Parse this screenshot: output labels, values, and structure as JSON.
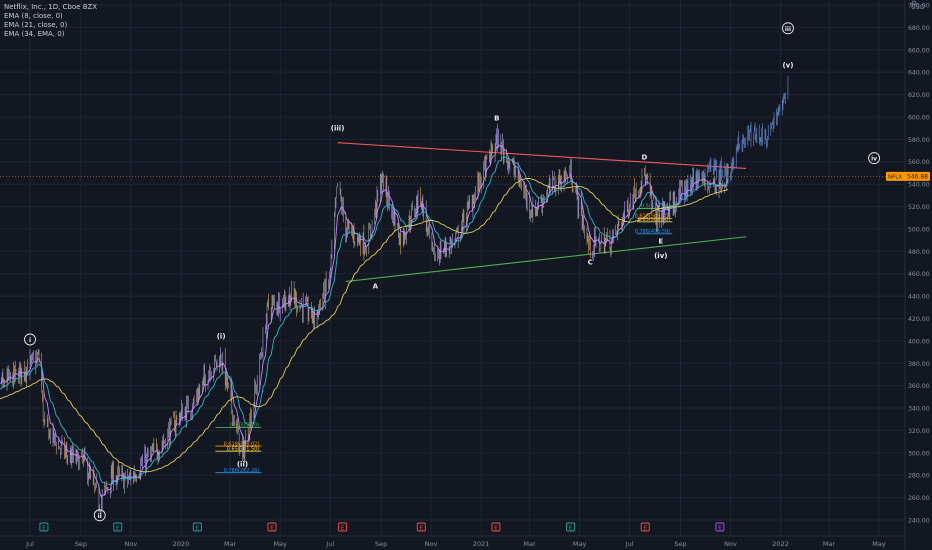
{
  "legend": {
    "title": "Netflix, Inc., 1D, Cboe BZX",
    "ema1": "EMA (8, close, 0)",
    "ema2": "EMA (21, close, 0)",
    "ema3": "EMA (34, EMA, 0)"
  },
  "currency": "USD",
  "last_price": {
    "ticker": "NFLX",
    "value": "546.88"
  },
  "colors": {
    "background": "#131722",
    "candles": "#a5a7ad",
    "projection": "#5d7fc2",
    "ema8": "#c08cff",
    "ema21": "#2fb6c8",
    "ema34": "#e3cd57",
    "resistance": "#f05a5a",
    "support": "#4caf50",
    "price_tag": "#ff9800"
  },
  "chart_data": {
    "type": "candlestick",
    "ylim": [
      230,
      705
    ],
    "y_ticks": [
      240,
      260,
      280,
      300,
      320,
      340,
      360,
      380,
      400,
      420,
      440,
      460,
      480,
      500,
      520,
      540,
      560,
      580,
      600,
      620,
      640,
      660,
      680,
      700
    ],
    "x_ticks": [
      {
        "label": "Jul",
        "date": "2019-07-01"
      },
      {
        "label": "Sep",
        "date": "2019-09-01"
      },
      {
        "label": "Nov",
        "date": "2019-11-01"
      },
      {
        "label": "2020",
        "date": "2020-01-01"
      },
      {
        "label": "Mar",
        "date": "2020-03-01"
      },
      {
        "label": "May",
        "date": "2020-05-01"
      },
      {
        "label": "Jul",
        "date": "2020-07-01"
      },
      {
        "label": "Sep",
        "date": "2020-09-01"
      },
      {
        "label": "Nov",
        "date": "2020-11-01"
      },
      {
        "label": "2021",
        "date": "2021-01-01"
      },
      {
        "label": "Mar",
        "date": "2021-03-01"
      },
      {
        "label": "May",
        "date": "2021-05-01"
      },
      {
        "label": "Jul",
        "date": "2021-07-01"
      },
      {
        "label": "Sep",
        "date": "2021-09-01"
      },
      {
        "label": "Nov",
        "date": "2021-11-01"
      },
      {
        "label": "2022",
        "date": "2022-01-01"
      },
      {
        "label": "Mar",
        "date": "2022-03-01"
      },
      {
        "label": "May",
        "date": "2022-05-01"
      }
    ],
    "price_path": [
      [
        "2019-05-10",
        355
      ],
      [
        "2019-06-05",
        365
      ],
      [
        "2019-06-25",
        375
      ],
      [
        "2019-07-12",
        385
      ],
      [
        "2019-07-18",
        325
      ],
      [
        "2019-08-06",
        305
      ],
      [
        "2019-08-20",
        295
      ],
      [
        "2019-09-05",
        292
      ],
      [
        "2019-09-24",
        255
      ],
      [
        "2019-10-10",
        280
      ],
      [
        "2019-10-28",
        275
      ],
      [
        "2019-11-15",
        290
      ],
      [
        "2019-12-06",
        305
      ],
      [
        "2019-12-27",
        330
      ],
      [
        "2020-01-17",
        345
      ],
      [
        "2020-02-05",
        375
      ],
      [
        "2020-02-19",
        385
      ],
      [
        "2020-03-16",
        295
      ],
      [
        "2020-04-02",
        360
      ],
      [
        "2020-04-16",
        430
      ],
      [
        "2020-05-15",
        440
      ],
      [
        "2020-06-12",
        420
      ],
      [
        "2020-06-30",
        455
      ],
      [
        "2020-07-10",
        540
      ],
      [
        "2020-07-20",
        500
      ],
      [
        "2020-08-15",
        485
      ],
      [
        "2020-09-02",
        545
      ],
      [
        "2020-09-25",
        490
      ],
      [
        "2020-10-19",
        530
      ],
      [
        "2020-11-03",
        475
      ],
      [
        "2020-12-01",
        490
      ],
      [
        "2020-12-29",
        540
      ],
      [
        "2021-01-20",
        580
      ],
      [
        "2021-02-12",
        550
      ],
      [
        "2021-03-05",
        515
      ],
      [
        "2021-03-30",
        540
      ],
      [
        "2021-04-20",
        550
      ],
      [
        "2021-05-12",
        485
      ],
      [
        "2021-06-10",
        490
      ],
      [
        "2021-07-08",
        535
      ],
      [
        "2021-07-19",
        548
      ],
      [
        "2021-08-02",
        510
      ],
      [
        "2021-08-20",
        520
      ],
      [
        "2021-09-01",
        530
      ],
      [
        "2021-09-20",
        545
      ],
      [
        "2021-10-10",
        540
      ],
      [
        "2021-10-30",
        547
      ]
    ],
    "projection_path": [
      [
        "2021-09-01",
        530
      ],
      [
        "2021-09-20",
        545
      ],
      [
        "2021-10-10",
        555
      ],
      [
        "2021-10-30",
        548
      ],
      [
        "2021-11-10",
        575
      ],
      [
        "2021-11-28",
        585
      ],
      [
        "2021-12-15",
        582
      ],
      [
        "2021-12-28",
        600
      ],
      [
        "2022-01-10",
        630
      ]
    ],
    "trendlines": [
      {
        "name": "resistance",
        "from": [
          "2020-07-10",
          577
        ],
        "to": [
          "2021-11-20",
          554
        ]
      },
      {
        "name": "support",
        "from": [
          "2020-07-20",
          453
        ],
        "to": [
          "2021-11-20",
          493
        ]
      }
    ],
    "fib_levels": [
      {
        "text": "0.5(322.70)",
        "price": 322.7,
        "from": "2020-02-12",
        "to": "2020-04-08",
        "color": "#4caf50"
      },
      {
        "text": "0.618(306.02)",
        "price": 306.02,
        "from": "2020-02-12",
        "to": "2020-04-08",
        "color": "#ff9800"
      },
      {
        "text": "0.65(301.50)",
        "price": 301.5,
        "from": "2020-02-12",
        "to": "2020-04-08",
        "color": "#f0d43a"
      },
      {
        "text": "0.786(282.28)",
        "price": 282.28,
        "from": "2020-02-12",
        "to": "2020-04-08",
        "color": "#2196f3"
      },
      {
        "text": "0.5(518.24)",
        "price": 518.24,
        "from": "2021-07-10",
        "to": "2021-08-22",
        "color": "#4caf50"
      },
      {
        "text": "0.618(509.40)",
        "price": 509.4,
        "from": "2021-07-10",
        "to": "2021-08-22",
        "color": "#ff9800"
      },
      {
        "text": "0.65(506.30)",
        "price": 506.3,
        "from": "2021-07-10",
        "to": "2021-08-22",
        "color": "#f0d43a"
      },
      {
        "text": "0.786(495.59)",
        "price": 495.59,
        "from": "2021-07-10",
        "to": "2021-08-22",
        "color": "#2196f3"
      }
    ],
    "wave_labels": [
      {
        "text": "i",
        "date": "2019-07-01",
        "price": 399,
        "circled": true
      },
      {
        "text": "ii",
        "date": "2019-09-24",
        "price": 242,
        "circled": true
      },
      {
        "text": "(i)",
        "date": "2020-02-19",
        "price": 402,
        "circled": false
      },
      {
        "text": "(ii)",
        "date": "2020-03-16",
        "price": 288,
        "circled": false
      },
      {
        "text": "(iii)",
        "date": "2020-07-10",
        "price": 588,
        "circled": false
      },
      {
        "text": "A",
        "date": "2020-08-25",
        "price": 447,
        "circled": false
      },
      {
        "text": "B",
        "date": "2021-01-20",
        "price": 597,
        "circled": false
      },
      {
        "text": "C",
        "date": "2021-05-14",
        "price": 468,
        "circled": false
      },
      {
        "text": "D",
        "date": "2021-07-19",
        "price": 562,
        "circled": false
      },
      {
        "text": "E",
        "date": "2021-08-08",
        "price": 487,
        "circled": false
      },
      {
        "text": "(iv)",
        "date": "2021-08-08",
        "price": 474,
        "circled": false
      },
      {
        "text": "iii",
        "date": "2022-01-10",
        "price": 677,
        "circled": true
      },
      {
        "text": "(v)",
        "date": "2022-01-10",
        "price": 644,
        "circled": false
      },
      {
        "text": "iv",
        "date": "2022-04-25",
        "price": 561,
        "circled": true
      }
    ],
    "event_markers": [
      {
        "text": "E",
        "date": "2019-07-18",
        "color": "#26a69a"
      },
      {
        "text": "E",
        "date": "2019-10-16",
        "color": "#26a69a"
      },
      {
        "text": "E",
        "date": "2020-01-21",
        "color": "#26a69a"
      },
      {
        "text": "E",
        "date": "2020-04-21",
        "color": "#ef5350"
      },
      {
        "text": "E",
        "date": "2020-07-16",
        "color": "#ef5350"
      },
      {
        "text": "E",
        "date": "2020-10-20",
        "color": "#ef5350"
      },
      {
        "text": "E",
        "date": "2021-01-19",
        "color": "#ef5350"
      },
      {
        "text": "E",
        "date": "2021-04-20",
        "color": "#26a69a"
      },
      {
        "text": "E",
        "date": "2021-07-20",
        "color": "#ef5350"
      },
      {
        "text": "E",
        "date": "2021-10-19",
        "color": "#b04cff"
      }
    ]
  }
}
